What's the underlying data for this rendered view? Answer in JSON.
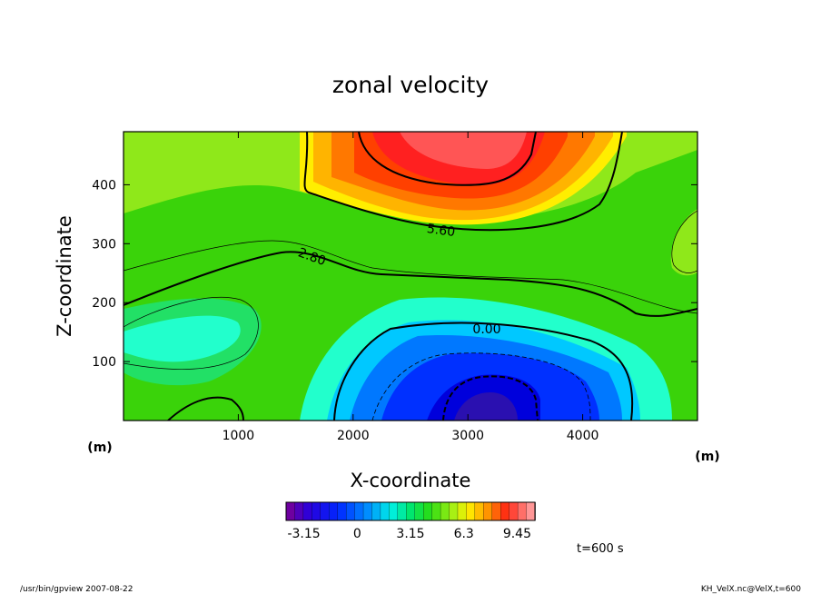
{
  "chart_data": {
    "type": "heatmap",
    "title": "zonal velocity",
    "xlabel": "X-coordinate",
    "ylabel": "Z-coordinate",
    "x_unit": "(m)",
    "y_unit": "(m)",
    "xlim": [
      0,
      5000
    ],
    "ylim": [
      0,
      490
    ],
    "x_ticks": [
      "1000",
      "2000",
      "3000",
      "4000"
    ],
    "x_tick_values": [
      1000,
      2000,
      3000,
      4000
    ],
    "y_ticks": [
      "100",
      "200",
      "300",
      "400"
    ],
    "y_tick_values": [
      100,
      200,
      300,
      400
    ],
    "contour_labels": [
      "5.60",
      "2.80",
      "0.00"
    ],
    "colorbar": {
      "min": -4.2,
      "max": 10.5,
      "tick_labels": [
        "-3.15",
        "0",
        "3.15",
        "6.3",
        "9.45"
      ],
      "tick_values": [
        -3.15,
        0,
        3.15,
        6.3,
        9.45
      ]
    },
    "time_label": "t=600 s"
  },
  "footer": {
    "left": "/usr/bin/gpview   2007-08-22",
    "right": "KH_VelX.nc@VelX,t=600"
  }
}
